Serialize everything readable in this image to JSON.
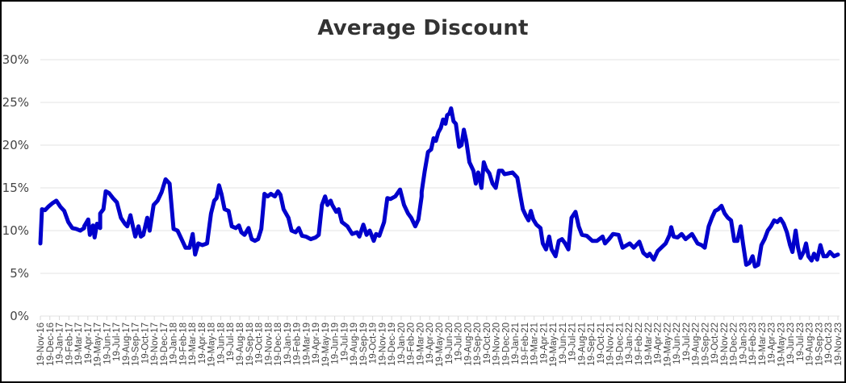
{
  "chart_data": {
    "type": "line",
    "title": "Average Discount",
    "xlabel": "",
    "ylabel": "",
    "ylim": [
      0,
      30
    ],
    "yticks": [
      "0%",
      "5%",
      "10%",
      "15%",
      "20%",
      "25%",
      "30%"
    ],
    "grid": true,
    "legend": null,
    "line_color": "#0000CC",
    "x_tick_labels": [
      "19-Nov-16",
      "19-Dec-16",
      "19-Jan-17",
      "19-Feb-17",
      "19-Mar-17",
      "19-Apr-17",
      "19-May-17",
      "19-Jun-17",
      "19-Jul-17",
      "19-Aug-17",
      "19-Sep-17",
      "19-Oct-17",
      "19-Nov-17",
      "19-Dec-17",
      "19-Jan-18",
      "19-Feb-18",
      "19-Mar-18",
      "19-Apr-18",
      "19-May-18",
      "19-Jun-18",
      "19-Jul-18",
      "19-Aug-18",
      "19-Sep-18",
      "19-Oct-18",
      "19-Nov-18",
      "19-Dec-18",
      "19-Jan-19",
      "19-Feb-19",
      "19-Mar-19",
      "19-Apr-19",
      "19-May-19",
      "19-Jun-19",
      "19-Jul-19",
      "19-Aug-19",
      "19-Sep-19",
      "19-Oct-19",
      "19-Nov-19",
      "19-Dec-19",
      "19-Jan-20",
      "19-Feb-20",
      "19-Mar-20",
      "19-Apr-20",
      "19-May-20",
      "19-Jun-20",
      "19-Jul-20",
      "19-Aug-20",
      "19-Sep-20",
      "19-Oct-20",
      "19-Nov-20",
      "19-Dec-20",
      "19-Jan-21",
      "19-Feb-21",
      "19-Mar-21",
      "19-Apr-21",
      "19-May-21",
      "19-Jun-21",
      "19-Jul-21",
      "19-Aug-21",
      "19-Sep-21",
      "19-Oct-21",
      "19-Nov-21",
      "19-Dec-21",
      "19-Jan-22",
      "19-Feb-22",
      "19-Mar-22",
      "19-Apr-22",
      "19-May-22",
      "19-Jun-22",
      "19-Jul-22",
      "19-Aug-22",
      "19-Sep-22",
      "19-Oct-22",
      "19-Nov-22",
      "19-Dec-22",
      "19-Jan-23",
      "19-Feb-23",
      "19-Mar-23",
      "19-Apr-23",
      "19-May-23",
      "19-Jun-23",
      "19-Jul-23",
      "19-Aug-23",
      "19-Sep-23",
      "19-Oct-23",
      "19-Nov-23"
    ],
    "series": [
      {
        "name": "Average Discount",
        "x_fraction_note": "points as [x position 0..1 across time axis, value %]",
        "points": [
          [
            0.0,
            8.5
          ],
          [
            0.002,
            12.5
          ],
          [
            0.006,
            12.4
          ],
          [
            0.01,
            12.8
          ],
          [
            0.015,
            13.2
          ],
          [
            0.02,
            13.5
          ],
          [
            0.025,
            12.8
          ],
          [
            0.03,
            12.3
          ],
          [
            0.035,
            11.0
          ],
          [
            0.04,
            10.3
          ],
          [
            0.045,
            10.2
          ],
          [
            0.05,
            10.0
          ],
          [
            0.055,
            10.3
          ],
          [
            0.05,
            10.0
          ],
          [
            0.055,
            10.5
          ],
          [
            0.06,
            11.3
          ],
          [
            0.062,
            9.5
          ],
          [
            0.066,
            10.6
          ],
          [
            0.068,
            9.2
          ],
          [
            0.072,
            10.5
          ],
          [
            0.075,
            10.3
          ],
          [
            0.071,
            10.8
          ],
          [
            0.075,
            12.0
          ],
          [
            0.079,
            12.5
          ],
          [
            0.082,
            14.6
          ],
          [
            0.086,
            14.4
          ],
          [
            0.091,
            13.8
          ],
          [
            0.096,
            13.3
          ],
          [
            0.101,
            11.5
          ],
          [
            0.106,
            10.8
          ],
          [
            0.109,
            10.5
          ],
          [
            0.113,
            11.8
          ],
          [
            0.116,
            10.5
          ],
          [
            0.119,
            9.3
          ],
          [
            0.123,
            10.5
          ],
          [
            0.126,
            9.3
          ],
          [
            0.129,
            9.5
          ],
          [
            0.134,
            11.5
          ],
          [
            0.137,
            10.0
          ],
          [
            0.142,
            13.0
          ],
          [
            0.147,
            13.5
          ],
          [
            0.152,
            14.5
          ],
          [
            0.157,
            16.0
          ],
          [
            0.162,
            15.5
          ],
          [
            0.167,
            10.2
          ],
          [
            0.172,
            10.0
          ],
          [
            0.177,
            9.0
          ],
          [
            0.182,
            8.0
          ],
          [
            0.187,
            8.0
          ],
          [
            0.191,
            9.6
          ],
          [
            0.194,
            7.2
          ],
          [
            0.198,
            8.5
          ],
          [
            0.203,
            8.3
          ],
          [
            0.209,
            8.5
          ],
          [
            0.214,
            12.0
          ],
          [
            0.218,
            13.5
          ],
          [
            0.221,
            13.8
          ],
          [
            0.224,
            15.3
          ],
          [
            0.227,
            14.3
          ],
          [
            0.231,
            12.5
          ],
          [
            0.236,
            12.3
          ],
          [
            0.24,
            10.5
          ],
          [
            0.245,
            10.3
          ],
          [
            0.249,
            10.6
          ],
          [
            0.252,
            9.8
          ],
          [
            0.256,
            9.5
          ],
          [
            0.261,
            10.3
          ],
          [
            0.265,
            9.0
          ],
          [
            0.269,
            8.8
          ],
          [
            0.273,
            9.0
          ],
          [
            0.277,
            10.2
          ],
          [
            0.281,
            14.3
          ],
          [
            0.285,
            14.0
          ],
          [
            0.289,
            14.3
          ],
          [
            0.294,
            14.0
          ],
          [
            0.298,
            14.6
          ],
          [
            0.301,
            14.2
          ],
          [
            0.305,
            12.5
          ],
          [
            0.311,
            11.5
          ],
          [
            0.315,
            10.0
          ],
          [
            0.32,
            9.8
          ],
          [
            0.324,
            10.3
          ],
          [
            0.328,
            9.4
          ],
          [
            0.333,
            9.3
          ],
          [
            0.339,
            9.0
          ],
          [
            0.345,
            9.2
          ],
          [
            0.349,
            9.5
          ],
          [
            0.353,
            13.0
          ],
          [
            0.357,
            14.0
          ],
          [
            0.36,
            13.0
          ],
          [
            0.364,
            13.5
          ],
          [
            0.366,
            13.0
          ],
          [
            0.371,
            12.2
          ],
          [
            0.374,
            12.5
          ],
          [
            0.378,
            11.0
          ],
          [
            0.385,
            10.5
          ],
          [
            0.391,
            9.6
          ],
          [
            0.397,
            9.8
          ],
          [
            0.4,
            9.3
          ],
          [
            0.405,
            10.7
          ],
          [
            0.409,
            9.5
          ],
          [
            0.413,
            10.0
          ],
          [
            0.418,
            8.8
          ],
          [
            0.421,
            9.6
          ],
          [
            0.425,
            9.4
          ],
          [
            0.431,
            11.0
          ],
          [
            0.435,
            13.8
          ],
          [
            0.439,
            13.7
          ],
          [
            0.445,
            14.0
          ],
          [
            0.451,
            14.8
          ],
          [
            0.456,
            13.0
          ],
          [
            0.461,
            12.0
          ],
          [
            0.465,
            11.5
          ],
          [
            0.47,
            10.5
          ],
          [
            0.474,
            11.3
          ],
          [
            0.478,
            14.0
          ],
          [
            0.478,
            14.5
          ],
          [
            0.482,
            17.0
          ],
          [
            0.486,
            19.2
          ],
          [
            0.49,
            19.5
          ],
          [
            0.493,
            20.8
          ],
          [
            0.496,
            20.5
          ],
          [
            0.499,
            21.5
          ],
          [
            0.502,
            22.0
          ],
          [
            0.505,
            23.0
          ],
          [
            0.508,
            22.5
          ],
          [
            0.51,
            23.5
          ],
          [
            0.513,
            23.7
          ],
          [
            0.515,
            24.3
          ],
          [
            0.518,
            22.8
          ],
          [
            0.521,
            22.5
          ],
          [
            0.525,
            19.8
          ],
          [
            0.528,
            20.0
          ],
          [
            0.531,
            21.8
          ],
          [
            0.534,
            20.5
          ],
          [
            0.538,
            18.0
          ],
          [
            0.543,
            17.0
          ],
          [
            0.546,
            15.5
          ],
          [
            0.549,
            16.8
          ],
          [
            0.553,
            15.0
          ],
          [
            0.556,
            18.0
          ],
          [
            0.559,
            17.2
          ],
          [
            0.563,
            16.7
          ],
          [
            0.567,
            15.5
          ],
          [
            0.571,
            15.0
          ],
          [
            0.575,
            17.0
          ],
          [
            0.579,
            17.0
          ],
          [
            0.582,
            16.6
          ],
          [
            0.587,
            16.7
          ],
          [
            0.592,
            16.8
          ],
          [
            0.598,
            16.2
          ],
          [
            0.602,
            14.0
          ],
          [
            0.605,
            12.5
          ],
          [
            0.609,
            11.7
          ],
          [
            0.612,
            11.2
          ],
          [
            0.615,
            12.3
          ],
          [
            0.618,
            11.3
          ],
          [
            0.622,
            10.7
          ],
          [
            0.627,
            10.3
          ],
          [
            0.63,
            8.5
          ],
          [
            0.634,
            7.8
          ],
          [
            0.638,
            9.3
          ],
          [
            0.641,
            7.8
          ],
          [
            0.646,
            7.0
          ],
          [
            0.65,
            8.8
          ],
          [
            0.654,
            9.0
          ],
          [
            0.658,
            8.5
          ],
          [
            0.662,
            7.8
          ],
          [
            0.666,
            11.5
          ],
          [
            0.671,
            12.2
          ],
          [
            0.675,
            10.5
          ],
          [
            0.679,
            9.5
          ],
          [
            0.685,
            9.4
          ],
          [
            0.692,
            8.8
          ],
          [
            0.698,
            8.8
          ],
          [
            0.705,
            9.3
          ],
          [
            0.708,
            8.5
          ],
          [
            0.713,
            9.0
          ],
          [
            0.718,
            9.6
          ],
          [
            0.725,
            9.5
          ],
          [
            0.73,
            8.0
          ],
          [
            0.739,
            8.5
          ],
          [
            0.744,
            8.0
          ],
          [
            0.751,
            8.7
          ],
          [
            0.756,
            7.4
          ],
          [
            0.761,
            7.0
          ],
          [
            0.764,
            7.3
          ],
          [
            0.769,
            6.6
          ],
          [
            0.774,
            7.6
          ],
          [
            0.784,
            8.5
          ],
          [
            0.789,
            9.5
          ],
          [
            0.791,
            10.4
          ],
          [
            0.794,
            9.3
          ],
          [
            0.799,
            9.2
          ],
          [
            0.804,
            9.6
          ],
          [
            0.809,
            9.0
          ],
          [
            0.817,
            9.6
          ],
          [
            0.824,
            8.5
          ],
          [
            0.829,
            8.3
          ],
          [
            0.833,
            8.0
          ],
          [
            0.838,
            10.5
          ],
          [
            0.842,
            11.5
          ],
          [
            0.846,
            12.3
          ],
          [
            0.85,
            12.5
          ],
          [
            0.854,
            12.9
          ],
          [
            0.858,
            12.0
          ],
          [
            0.862,
            11.5
          ],
          [
            0.866,
            11.2
          ],
          [
            0.87,
            8.8
          ],
          [
            0.874,
            8.8
          ],
          [
            0.878,
            10.5
          ],
          [
            0.881,
            8.5
          ],
          [
            0.885,
            6.0
          ],
          [
            0.889,
            6.2
          ],
          [
            0.893,
            7.0
          ],
          [
            0.896,
            5.8
          ],
          [
            0.9,
            6.0
          ],
          [
            0.904,
            8.3
          ],
          [
            0.908,
            9.0
          ],
          [
            0.912,
            10.0
          ],
          [
            0.916,
            10.5
          ],
          [
            0.92,
            11.2
          ],
          [
            0.924,
            11.0
          ],
          [
            0.928,
            11.4
          ],
          [
            0.932,
            10.8
          ],
          [
            0.936,
            9.8
          ],
          [
            0.94,
            8.3
          ],
          [
            0.943,
            7.5
          ],
          [
            0.947,
            10.0
          ],
          [
            0.95,
            8.0
          ],
          [
            0.953,
            6.8
          ],
          [
            0.957,
            7.5
          ],
          [
            0.96,
            8.5
          ],
          [
            0.963,
            7.0
          ],
          [
            0.967,
            6.5
          ],
          [
            0.97,
            7.3
          ],
          [
            0.974,
            6.6
          ],
          [
            0.978,
            8.3
          ],
          [
            0.982,
            7.0
          ],
          [
            0.986,
            7.0
          ],
          [
            0.99,
            7.5
          ],
          [
            0.995,
            7.0
          ],
          [
            1.0,
            7.2
          ]
        ]
      }
    ]
  }
}
